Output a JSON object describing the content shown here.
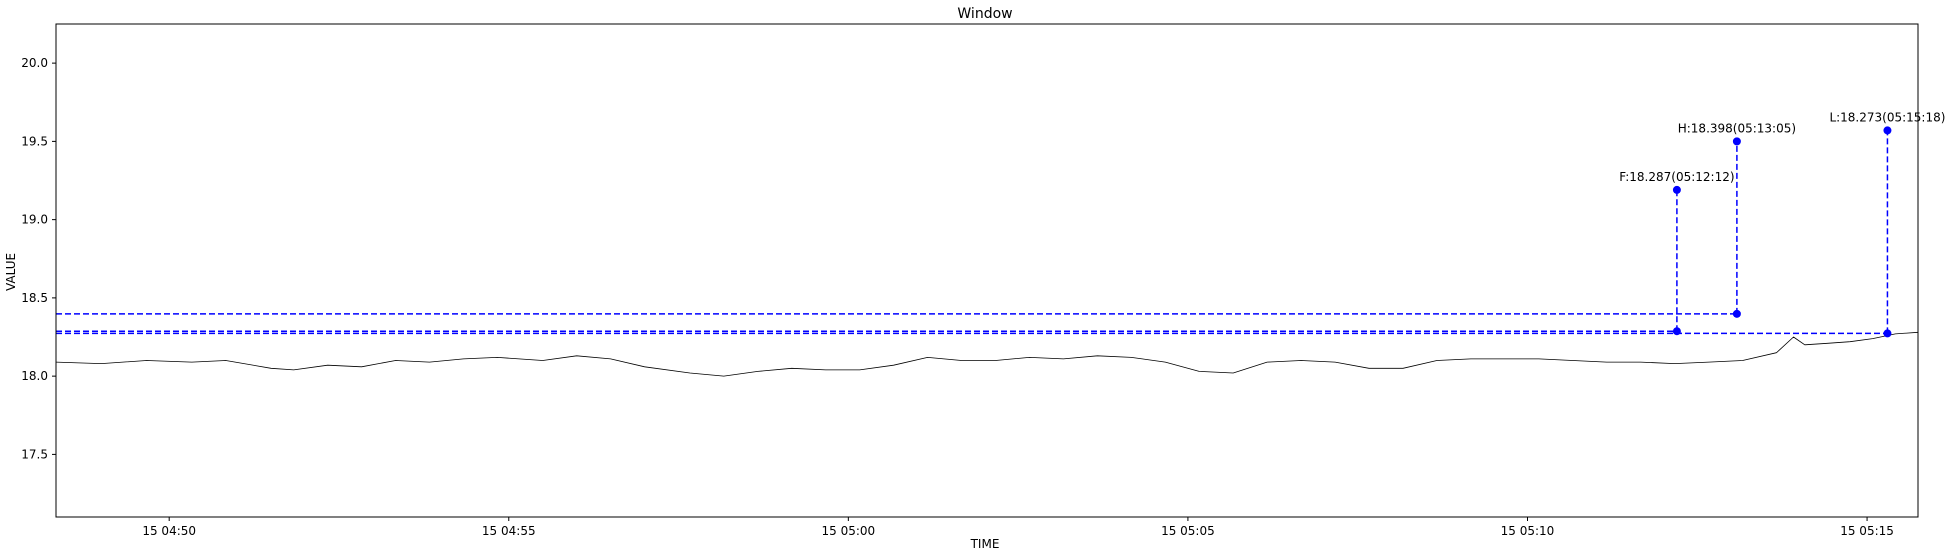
{
  "chart_data": {
    "type": "line",
    "title": "Window",
    "xlabel": "TIME",
    "ylabel": "VALUE",
    "x_range": [
      "15 04:48:20",
      "15 05:15:45"
    ],
    "ylim": [
      17.1,
      20.25
    ],
    "x_ticks": [
      {
        "label": "15 04:50",
        "time": "04:50:00"
      },
      {
        "label": "15 04:55",
        "time": "04:55:00"
      },
      {
        "label": "15 05:00",
        "time": "05:00:00"
      },
      {
        "label": "15 05:05",
        "time": "05:05:00"
      },
      {
        "label": "15 05:10",
        "time": "05:10:00"
      },
      {
        "label": "15 05:15",
        "time": "05:15:00"
      }
    ],
    "y_ticks": [
      {
        "label": "17.5",
        "value": 17.5
      },
      {
        "label": "18.0",
        "value": 18.0
      },
      {
        "label": "18.5",
        "value": 18.5
      },
      {
        "label": "19.0",
        "value": 19.0
      },
      {
        "label": "19.5",
        "value": 19.5
      },
      {
        "label": "20.0",
        "value": 20.0
      }
    ],
    "series": [
      {
        "color": "#000000",
        "points": [
          [
            "04:48:20",
            18.09
          ],
          [
            "04:49:00",
            18.08
          ],
          [
            "04:49:40",
            18.1
          ],
          [
            "04:50:20",
            18.09
          ],
          [
            "04:50:50",
            18.1
          ],
          [
            "04:51:30",
            18.05
          ],
          [
            "04:51:50",
            18.04
          ],
          [
            "04:52:20",
            18.07
          ],
          [
            "04:52:50",
            18.06
          ],
          [
            "04:53:20",
            18.1
          ],
          [
            "04:53:50",
            18.09
          ],
          [
            "04:54:20",
            18.11
          ],
          [
            "04:54:50",
            18.12
          ],
          [
            "04:55:30",
            18.1
          ],
          [
            "04:56:00",
            18.13
          ],
          [
            "04:56:30",
            18.11
          ],
          [
            "04:57:00",
            18.06
          ],
          [
            "04:57:40",
            18.02
          ],
          [
            "04:58:10",
            18.0
          ],
          [
            "04:58:40",
            18.03
          ],
          [
            "04:59:10",
            18.05
          ],
          [
            "04:59:40",
            18.04
          ],
          [
            "05:00:10",
            18.04
          ],
          [
            "05:00:40",
            18.07
          ],
          [
            "05:01:10",
            18.12
          ],
          [
            "05:01:40",
            18.1
          ],
          [
            "05:02:10",
            18.1
          ],
          [
            "05:02:40",
            18.12
          ],
          [
            "05:03:10",
            18.11
          ],
          [
            "05:03:40",
            18.13
          ],
          [
            "05:04:10",
            18.12
          ],
          [
            "05:04:40",
            18.09
          ],
          [
            "05:05:10",
            18.03
          ],
          [
            "05:05:40",
            18.02
          ],
          [
            "05:06:10",
            18.09
          ],
          [
            "05:06:40",
            18.1
          ],
          [
            "05:07:10",
            18.09
          ],
          [
            "05:07:40",
            18.05
          ],
          [
            "05:08:10",
            18.05
          ],
          [
            "05:08:40",
            18.1
          ],
          [
            "05:09:10",
            18.11
          ],
          [
            "05:09:40",
            18.11
          ],
          [
            "05:10:10",
            18.11
          ],
          [
            "05:10:40",
            18.1
          ],
          [
            "05:11:10",
            18.09
          ],
          [
            "05:11:40",
            18.09
          ],
          [
            "05:12:10",
            18.08
          ],
          [
            "05:12:40",
            18.09
          ],
          [
            "05:13:10",
            18.1
          ],
          [
            "05:13:40",
            18.15
          ],
          [
            "05:13:55",
            18.25
          ],
          [
            "05:14:05",
            18.2
          ],
          [
            "05:14:25",
            18.21
          ],
          [
            "05:14:45",
            18.22
          ],
          [
            "05:15:05",
            18.24
          ],
          [
            "05:15:25",
            18.27
          ],
          [
            "05:15:45",
            18.28
          ]
        ]
      }
    ],
    "markers": {
      "color": "#0000ff",
      "points": [
        {
          "label": "F:18.287(05:12:12)",
          "time": "05:12:12",
          "value": 18.287,
          "label_value": 19.19
        },
        {
          "label": "H:18.398(05:13:05)",
          "time": "05:13:05",
          "value": 18.398,
          "label_value": 19.5
        },
        {
          "label": "L:18.273(05:15:18)",
          "time": "05:15:18",
          "value": 18.273,
          "label_value": 19.57
        }
      ]
    },
    "grid": false
  }
}
